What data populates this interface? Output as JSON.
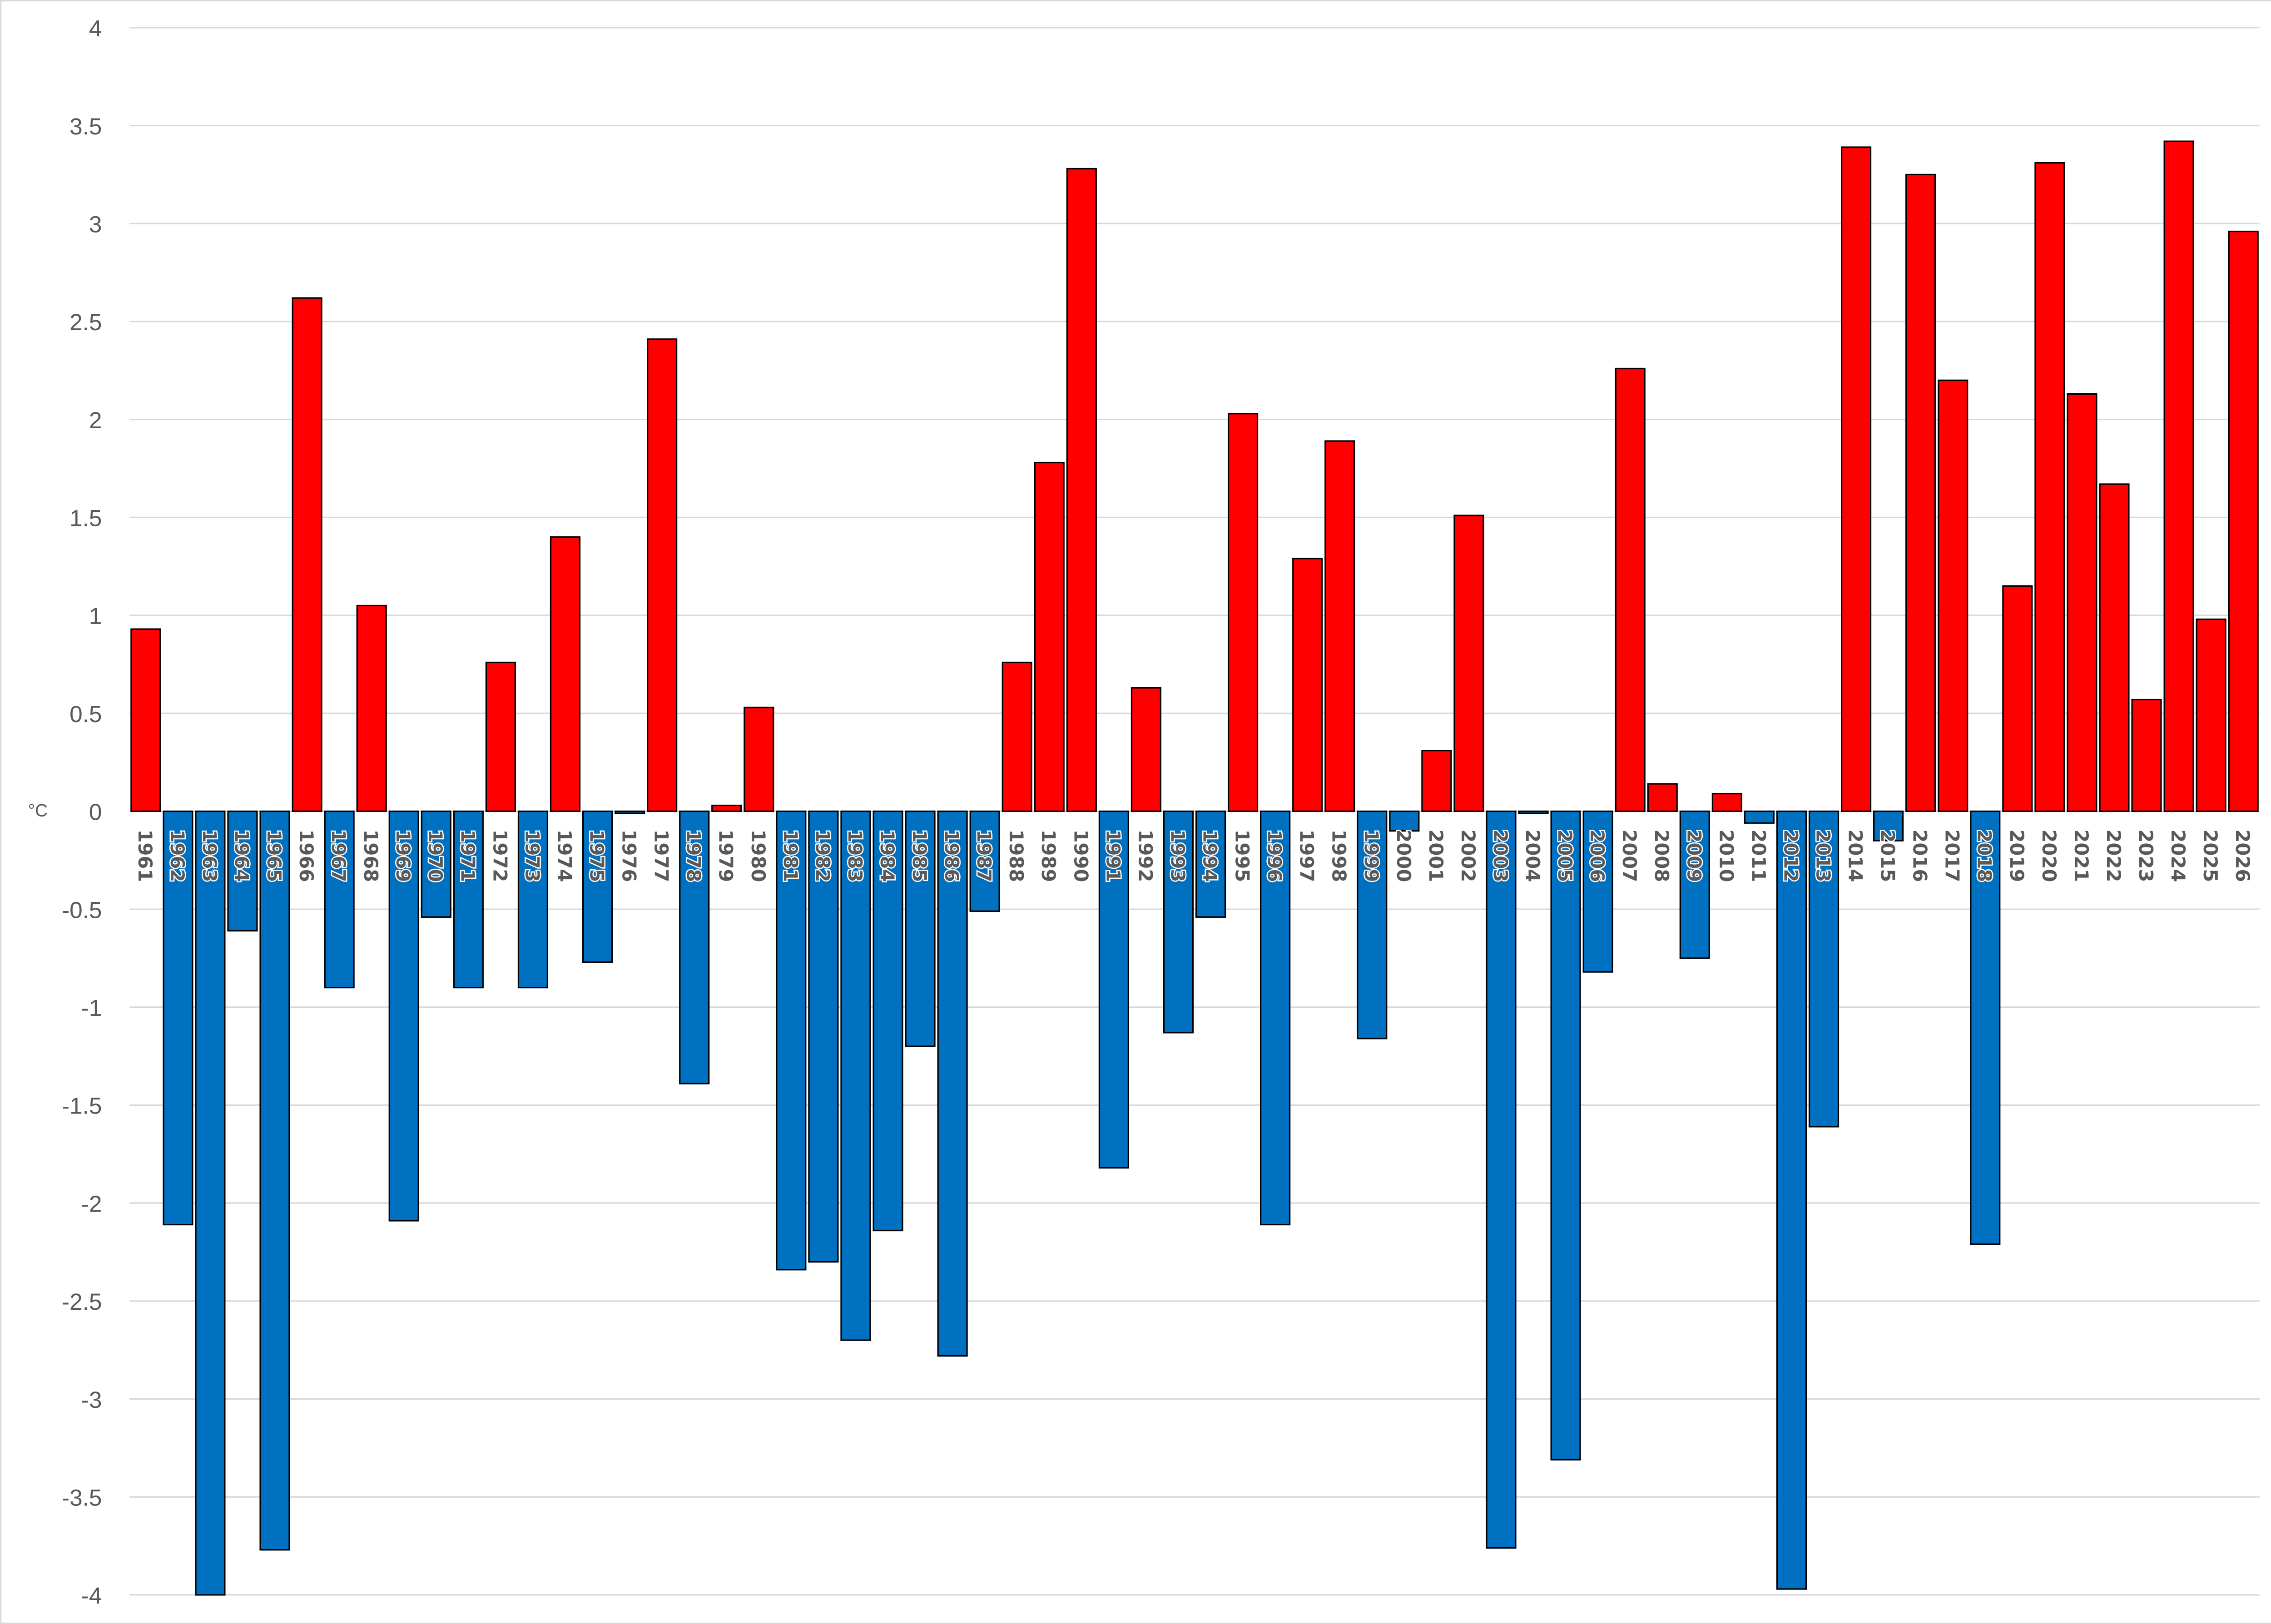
{
  "chart_data": {
    "type": "bar",
    "ylabel": "°C",
    "ylim": [
      -4,
      4
    ],
    "yticks": [
      4,
      3.5,
      3,
      2.5,
      2,
      1.5,
      1,
      0.5,
      0,
      -0.5,
      -1,
      -1.5,
      -2,
      -2.5,
      -3,
      -3.5,
      -4
    ],
    "grid": true,
    "colors": {
      "positive": "#FF0000",
      "negative": "#0070C0",
      "outline": "#000000"
    },
    "categories": [
      "1961",
      "1962",
      "1963",
      "1964",
      "1965",
      "1966",
      "1967",
      "1968",
      "1969",
      "1970",
      "1971",
      "1972",
      "1973",
      "1974",
      "1975",
      "1976",
      "1977",
      "1978",
      "1979",
      "1980",
      "1981",
      "1982",
      "1983",
      "1984",
      "1985",
      "1986",
      "1987",
      "1988",
      "1989",
      "1990",
      "1991",
      "1992",
      "1993",
      "1994",
      "1995",
      "1996",
      "1997",
      "1998",
      "1999",
      "2000",
      "2001",
      "2002",
      "2003",
      "2004",
      "2005",
      "2006",
      "2007",
      "2008",
      "2009",
      "2010",
      "2011",
      "2012",
      "2013",
      "2014",
      "2015",
      "2016",
      "2017",
      "2018",
      "2019",
      "2020",
      "2021",
      "2022",
      "2023",
      "2024",
      "2025",
      "2026"
    ],
    "values": [
      0.93,
      -2.11,
      -4.0,
      -0.61,
      -3.77,
      2.62,
      -0.9,
      1.05,
      -2.09,
      -0.54,
      -0.9,
      0.76,
      -0.9,
      1.4,
      -0.77,
      -0.01,
      2.41,
      -1.39,
      0.03,
      0.53,
      -2.34,
      -2.3,
      -2.7,
      -2.14,
      -1.2,
      -2.78,
      -0.51,
      0.76,
      1.78,
      3.28,
      -1.82,
      0.63,
      -1.13,
      -0.54,
      2.03,
      -2.11,
      1.29,
      1.89,
      -1.16,
      -0.1,
      0.31,
      1.51,
      -3.76,
      -0.01,
      -3.31,
      -0.82,
      2.26,
      0.14,
      -0.75,
      0.09,
      -0.06,
      -3.97,
      -1.61,
      3.39,
      -0.15,
      3.25,
      2.2,
      -2.21,
      1.15,
      3.31,
      2.13,
      1.67,
      0.57,
      3.42,
      0.98,
      2.96
    ]
  }
}
